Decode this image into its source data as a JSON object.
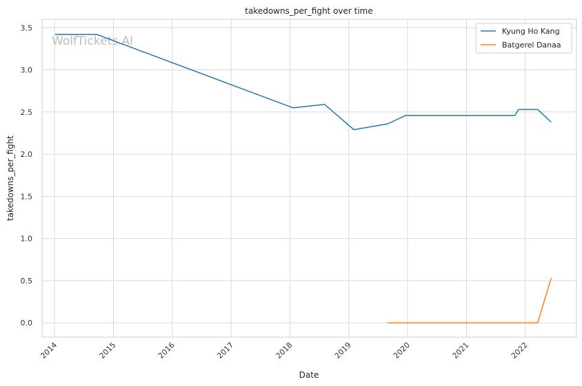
{
  "chart_data": {
    "type": "line",
    "title": "takedowns_per_fight over time",
    "xlabel": "Date",
    "ylabel": "takedowns_per_fight",
    "watermark": "WolfTickets.AI",
    "x_ticks": [
      "2014",
      "2015",
      "2016",
      "2017",
      "2018",
      "2019",
      "2020",
      "2021",
      "2022"
    ],
    "y_ticks": [
      "0.0",
      "0.5",
      "1.0",
      "1.5",
      "2.0",
      "2.5",
      "3.0",
      "3.5"
    ],
    "xlim": [
      "2013-10-15",
      "2022-11-15"
    ],
    "ylim": [
      -0.17,
      3.6
    ],
    "grid": true,
    "legend_position": "top-right",
    "series": [
      {
        "name": "Kyung Ho Kang",
        "color": "#1f77b4",
        "points": [
          {
            "x": "2014-01-04",
            "y": 3.42
          },
          {
            "x": "2014-09-20",
            "y": 3.42
          },
          {
            "x": "2018-01-20",
            "y": 2.55
          },
          {
            "x": "2018-08-04",
            "y": 2.59
          },
          {
            "x": "2019-02-02",
            "y": 2.29
          },
          {
            "x": "2019-08-31",
            "y": 2.36
          },
          {
            "x": "2019-12-21",
            "y": 2.46
          },
          {
            "x": "2021-10-30",
            "y": 2.46
          },
          {
            "x": "2021-11-20",
            "y": 2.53
          },
          {
            "x": "2022-03-19",
            "y": 2.53
          },
          {
            "x": "2022-06-11",
            "y": 2.38
          }
        ]
      },
      {
        "name": "Batgerel Danaa",
        "color": "#ff7f0e",
        "points": [
          {
            "x": "2019-08-31",
            "y": 0.0
          },
          {
            "x": "2022-03-19",
            "y": 0.0
          },
          {
            "x": "2022-06-11",
            "y": 0.53
          }
        ]
      }
    ]
  }
}
